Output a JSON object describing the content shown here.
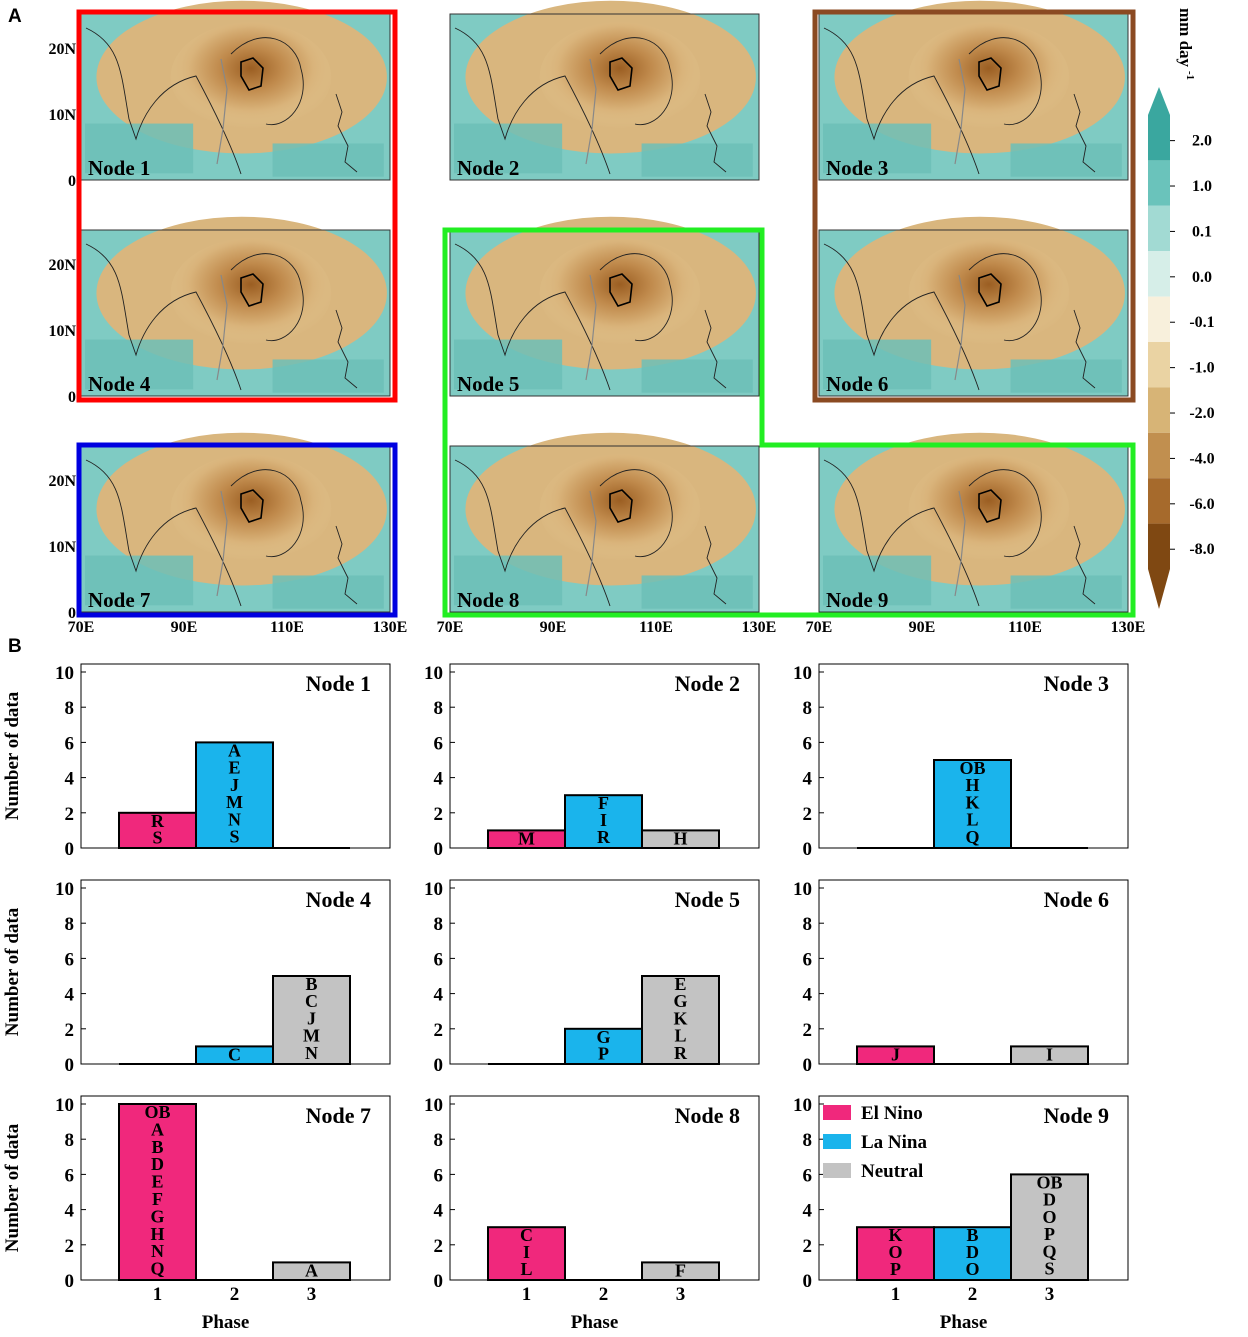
{
  "panel_labels": {
    "a": "A",
    "b": "B"
  },
  "colors": {
    "el_nino": "#f0287c",
    "la_nina": "#1ab4ec",
    "neutral": "#c3c3c3",
    "frame_red": "#ff0000",
    "frame_blue": "#0000e0",
    "frame_green": "#22ee22",
    "frame_brown": "#8b4a22"
  },
  "maps": {
    "nodes": [
      "Node 1",
      "Node 2",
      "Node 3",
      "Node 4",
      "Node 5",
      "Node 6",
      "Node 7",
      "Node 8",
      "Node 9"
    ],
    "lat_ticks": [
      "20N",
      "10N",
      "0"
    ],
    "lon_ticks": [
      "70E",
      "90E",
      "110E",
      "130E"
    ]
  },
  "colorbar": {
    "unit_main": "mm day",
    "unit_sup": "-1",
    "labels": [
      "2.0",
      "1.0",
      "0.1",
      "0.0",
      "-0.1",
      "-1.0",
      "-2.0",
      "-4.0",
      "-6.0",
      "-8.0"
    ],
    "colors": [
      "#3aa79f",
      "#6ac3bb",
      "#a2dad3",
      "#d6eee8",
      "#f8f0dc",
      "#ead3a3",
      "#d7b476",
      "#c18f4f",
      "#a66a2c",
      "#7f4812"
    ]
  },
  "chart_data": [
    {
      "type": "bar",
      "title": "Node 1",
      "xlabel": "Phase",
      "ylabel": "Number of data",
      "categories": [
        "1",
        "2",
        "3"
      ],
      "ylim": [
        0,
        10
      ],
      "yticks": [
        "0",
        "2",
        "4",
        "6",
        "8",
        "10"
      ],
      "values": [
        2,
        6,
        0
      ],
      "bar_labels": [
        [
          "R",
          "S"
        ],
        [
          "A",
          "E",
          "J",
          "M",
          "N",
          "S"
        ],
        []
      ]
    },
    {
      "type": "bar",
      "title": "Node 2",
      "xlabel": "Phase",
      "ylabel": "Number of data",
      "categories": [
        "1",
        "2",
        "3"
      ],
      "ylim": [
        0,
        10
      ],
      "yticks": [
        "0",
        "2",
        "4",
        "6",
        "8",
        "10"
      ],
      "values": [
        1,
        3,
        1
      ],
      "bar_labels": [
        [
          "M"
        ],
        [
          "F",
          "I",
          "R"
        ],
        [
          "H"
        ]
      ]
    },
    {
      "type": "bar",
      "title": "Node 3",
      "xlabel": "Phase",
      "ylabel": "Number of data",
      "categories": [
        "1",
        "2",
        "3"
      ],
      "ylim": [
        0,
        10
      ],
      "yticks": [
        "0",
        "2",
        "4",
        "6",
        "8",
        "10"
      ],
      "values": [
        0,
        5,
        0
      ],
      "bar_labels": [
        [],
        [
          "OB",
          "H",
          "K",
          "L",
          "Q"
        ],
        []
      ]
    },
    {
      "type": "bar",
      "title": "Node 4",
      "xlabel": "Phase",
      "ylabel": "Number of data",
      "categories": [
        "1",
        "2",
        "3"
      ],
      "ylim": [
        0,
        10
      ],
      "yticks": [
        "0",
        "2",
        "4",
        "6",
        "8",
        "10"
      ],
      "values": [
        0,
        1,
        5
      ],
      "bar_labels": [
        [],
        [
          "C"
        ],
        [
          "B",
          "C",
          "J",
          "M",
          "N"
        ]
      ]
    },
    {
      "type": "bar",
      "title": "Node 5",
      "xlabel": "Phase",
      "ylabel": "Number of data",
      "categories": [
        "1",
        "2",
        "3"
      ],
      "ylim": [
        0,
        10
      ],
      "yticks": [
        "0",
        "2",
        "4",
        "6",
        "8",
        "10"
      ],
      "values": [
        0,
        2,
        5
      ],
      "bar_labels": [
        [],
        [
          "G",
          "P"
        ],
        [
          "E",
          "G",
          "K",
          "L",
          "R"
        ]
      ]
    },
    {
      "type": "bar",
      "title": "Node 6",
      "xlabel": "Phase",
      "ylabel": "Number of data",
      "categories": [
        "1",
        "2",
        "3"
      ],
      "ylim": [
        0,
        10
      ],
      "yticks": [
        "0",
        "2",
        "4",
        "6",
        "8",
        "10"
      ],
      "values": [
        1,
        0,
        1
      ],
      "bar_labels": [
        [
          "J"
        ],
        [],
        [
          "I"
        ]
      ]
    },
    {
      "type": "bar",
      "title": "Node 7",
      "xlabel": "Phase",
      "ylabel": "Number of data",
      "categories": [
        "1",
        "2",
        "3"
      ],
      "ylim": [
        0,
        10
      ],
      "yticks": [
        "0",
        "2",
        "4",
        "6",
        "8",
        "10"
      ],
      "values": [
        10,
        0,
        1
      ],
      "bar_labels": [
        [
          "OB",
          "A",
          "B",
          "D",
          "E",
          "F",
          "G",
          "H",
          "N",
          "Q"
        ],
        [],
        [
          "A"
        ]
      ]
    },
    {
      "type": "bar",
      "title": "Node 8",
      "xlabel": "Phase",
      "ylabel": "Number of data",
      "categories": [
        "1",
        "2",
        "3"
      ],
      "ylim": [
        0,
        10
      ],
      "yticks": [
        "0",
        "2",
        "4",
        "6",
        "8",
        "10"
      ],
      "values": [
        3,
        0,
        1
      ],
      "bar_labels": [
        [
          "C",
          "I",
          "L"
        ],
        [],
        [
          "F"
        ]
      ]
    },
    {
      "type": "bar",
      "title": "Node 9",
      "xlabel": "Phase",
      "ylabel": "Number of data",
      "categories": [
        "1",
        "2",
        "3"
      ],
      "ylim": [
        0,
        10
      ],
      "yticks": [
        "0",
        "2",
        "4",
        "6",
        "8",
        "10"
      ],
      "values": [
        3,
        3,
        6
      ],
      "bar_labels": [
        [
          "K",
          "O",
          "P"
        ],
        [
          "B",
          "D",
          "O"
        ],
        [
          "OB",
          "D",
          "O",
          "P",
          "Q",
          "S"
        ]
      ],
      "legend": [
        "El Nino",
        "La Nina",
        "Neutral"
      ]
    }
  ]
}
